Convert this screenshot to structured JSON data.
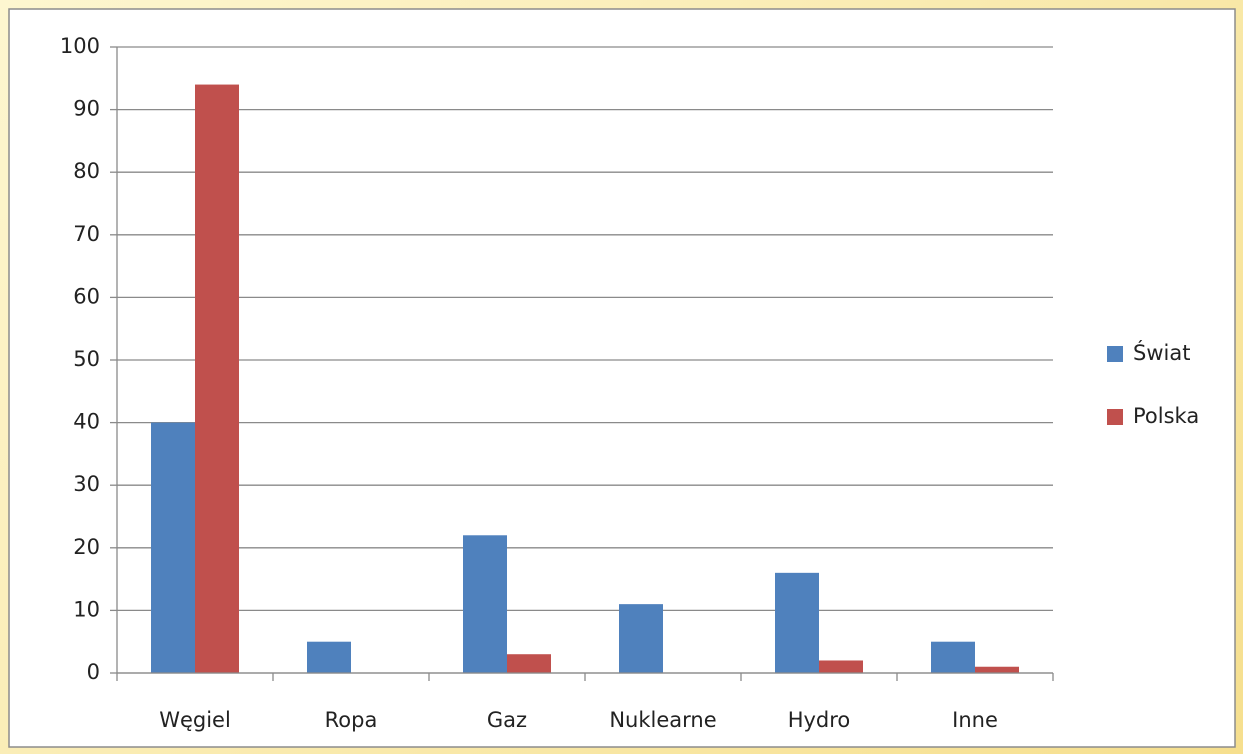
{
  "chart_data": {
    "type": "bar",
    "categories": [
      "Węgiel",
      "Ropa",
      "Gaz",
      "Nuklearne",
      "Hydro",
      "Inne"
    ],
    "series": [
      {
        "name": "Świat",
        "color": "#4f81bd",
        "values": [
          40,
          5,
          22,
          11,
          16,
          5
        ]
      },
      {
        "name": "Polska",
        "color": "#c0504d",
        "values": [
          94,
          0,
          3,
          0,
          2,
          1
        ]
      }
    ],
    "ylim": [
      0,
      100
    ],
    "yticks": [
      0,
      10,
      20,
      30,
      40,
      50,
      60,
      70,
      80,
      90,
      100
    ],
    "grid": true,
    "legend": "right"
  }
}
